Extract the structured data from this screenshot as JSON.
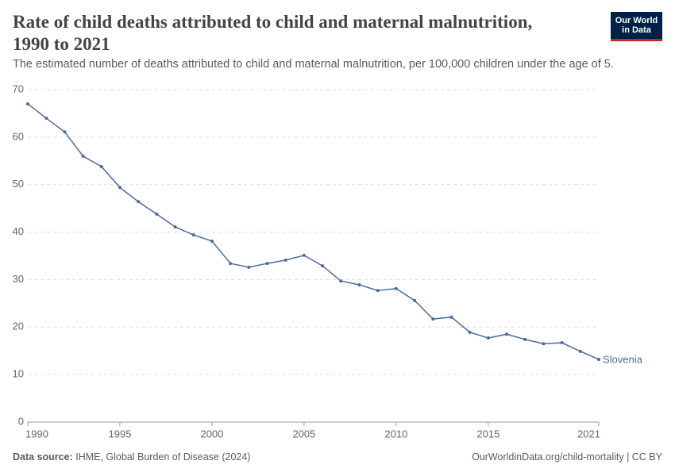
{
  "chart_data": {
    "type": "line",
    "title": "Rate of child deaths attributed to child and maternal malnutrition, 1990 to 2021",
    "subtitle": "The estimated number of deaths attributed to child and maternal malnutrition, per 100,000 children under the age of 5.",
    "logo": [
      "Our World",
      "in Data"
    ],
    "source_label": "Data source:",
    "source": "IHME, Global Burden of Disease (2024)",
    "footer_right": "OurWorldinData.org/child-mortality | CC BY",
    "x": [
      1990,
      1991,
      1992,
      1993,
      1994,
      1995,
      1996,
      1997,
      1998,
      1999,
      2000,
      2001,
      2002,
      2003,
      2004,
      2005,
      2006,
      2007,
      2008,
      2009,
      2010,
      2011,
      2012,
      2013,
      2014,
      2015,
      2016,
      2017,
      2018,
      2019,
      2020,
      2021
    ],
    "series": [
      {
        "name": "Slovenia",
        "color": "#4c6a9c",
        "values": [
          67.0,
          64.0,
          61.1,
          56.0,
          53.8,
          49.4,
          46.4,
          43.8,
          41.1,
          39.4,
          38.1,
          33.4,
          32.6,
          33.4,
          34.1,
          35.1,
          32.9,
          29.7,
          28.9,
          27.7,
          28.1,
          25.6,
          21.7,
          22.1,
          18.9,
          17.7,
          18.5,
          17.4,
          16.5,
          16.7,
          14.9,
          13.2
        ]
      }
    ],
    "xlim": [
      1990,
      2021
    ],
    "xticks": [
      1990,
      1995,
      2000,
      2005,
      2010,
      2015,
      2021
    ],
    "ylim": [
      0,
      70
    ],
    "yticks": [
      0,
      10,
      20,
      30,
      40,
      50,
      60,
      70
    ],
    "grid": true
  }
}
